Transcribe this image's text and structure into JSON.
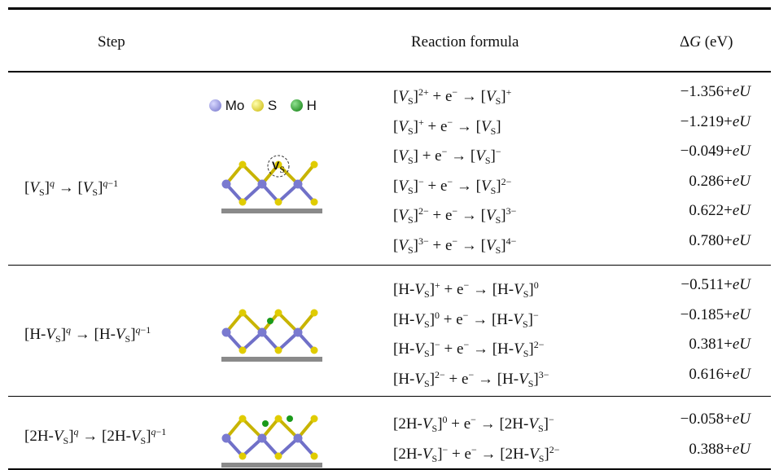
{
  "header": {
    "step": "Step",
    "formula": "Reaction formula",
    "dg": [
      "Δ",
      {
        "text": "G",
        "style": "i"
      },
      " (eV)"
    ]
  },
  "legend": {
    "mo": "Mo",
    "s": "S",
    "h": "H"
  },
  "vacancy_label": [
    {
      "text": "V",
      "style": "b"
    },
    {
      "text": "S",
      "style": "sub"
    }
  ],
  "groups": [
    {
      "step": [
        "[",
        {
          "text": "V",
          "style": "i"
        },
        {
          "text": "S",
          "style": "sub"
        },
        "]",
        {
          "text": "q",
          "style": "sup-i"
        },
        " → [",
        {
          "text": "V",
          "style": "i"
        },
        {
          "text": "S",
          "style": "sub"
        },
        "]",
        {
          "text": "q",
          "style": "sup-i"
        },
        {
          "text": "−1",
          "style": "sup"
        }
      ],
      "rows": [
        {
          "formula": [
            "[",
            {
              "text": "V",
              "style": "i"
            },
            {
              "text": "S",
              "style": "sub"
            },
            "]",
            {
              "text": "2+",
              "style": "sup"
            },
            " + e",
            {
              "text": "−",
              "style": "sup"
            },
            " → [",
            {
              "text": "V",
              "style": "i"
            },
            {
              "text": "S",
              "style": "sub"
            },
            "]",
            {
              "text": "+",
              "style": "sup"
            }
          ],
          "dg": [
            "−1.356+",
            {
              "text": "eU",
              "style": "i"
            }
          ]
        },
        {
          "formula": [
            "[",
            {
              "text": "V",
              "style": "i"
            },
            {
              "text": "S",
              "style": "sub"
            },
            "]",
            {
              "text": "+",
              "style": "sup"
            },
            " + e",
            {
              "text": "−",
              "style": "sup"
            },
            " → [",
            {
              "text": "V",
              "style": "i"
            },
            {
              "text": "S",
              "style": "sub"
            },
            "]"
          ],
          "dg": [
            "−1.219+",
            {
              "text": "eU",
              "style": "i"
            }
          ]
        },
        {
          "formula": [
            "[",
            {
              "text": "V",
              "style": "i"
            },
            {
              "text": "S",
              "style": "sub"
            },
            "] + e",
            {
              "text": "−",
              "style": "sup"
            },
            " → [",
            {
              "text": "V",
              "style": "i"
            },
            {
              "text": "S",
              "style": "sub"
            },
            "]",
            {
              "text": "−",
              "style": "sup"
            }
          ],
          "dg": [
            "−0.049+",
            {
              "text": "eU",
              "style": "i"
            }
          ]
        },
        {
          "formula": [
            "[",
            {
              "text": "V",
              "style": "i"
            },
            {
              "text": "S",
              "style": "sub"
            },
            "]",
            {
              "text": "−",
              "style": "sup"
            },
            " + e",
            {
              "text": "−",
              "style": "sup"
            },
            " → [",
            {
              "text": "V",
              "style": "i"
            },
            {
              "text": "S",
              "style": "sub"
            },
            "]",
            {
              "text": "2−",
              "style": "sup"
            }
          ],
          "dg": [
            "0.286+",
            {
              "text": "eU",
              "style": "i"
            }
          ]
        },
        {
          "formula": [
            "[",
            {
              "text": "V",
              "style": "i"
            },
            {
              "text": "S",
              "style": "sub"
            },
            "]",
            {
              "text": "2−",
              "style": "sup"
            },
            " + e",
            {
              "text": "−",
              "style": "sup"
            },
            " → [",
            {
              "text": "V",
              "style": "i"
            },
            {
              "text": "S",
              "style": "sub"
            },
            "]",
            {
              "text": "3−",
              "style": "sup"
            }
          ],
          "dg": [
            "0.622+",
            {
              "text": "eU",
              "style": "i"
            }
          ]
        },
        {
          "formula": [
            "[",
            {
              "text": "V",
              "style": "i"
            },
            {
              "text": "S",
              "style": "sub"
            },
            "]",
            {
              "text": "3−",
              "style": "sup"
            },
            " + e",
            {
              "text": "−",
              "style": "sup"
            },
            " → [",
            {
              "text": "V",
              "style": "i"
            },
            {
              "text": "S",
              "style": "sub"
            },
            "]",
            {
              "text": "4−",
              "style": "sup"
            }
          ],
          "dg": [
            "0.780+",
            {
              "text": "eU",
              "style": "i"
            }
          ]
        }
      ]
    },
    {
      "step": [
        "[H-",
        {
          "text": "V",
          "style": "i"
        },
        {
          "text": "S",
          "style": "sub"
        },
        "]",
        {
          "text": "q",
          "style": "sup-i"
        },
        " → [H-",
        {
          "text": "V",
          "style": "i"
        },
        {
          "text": "S",
          "style": "sub"
        },
        "]",
        {
          "text": "q",
          "style": "sup-i"
        },
        {
          "text": "−1",
          "style": "sup"
        }
      ],
      "rows": [
        {
          "formula": [
            "[H-",
            {
              "text": "V",
              "style": "i"
            },
            {
              "text": "S",
              "style": "sub"
            },
            "]",
            {
              "text": "+",
              "style": "sup"
            },
            " + e",
            {
              "text": "−",
              "style": "sup"
            },
            " → [H-",
            {
              "text": "V",
              "style": "i"
            },
            {
              "text": "S",
              "style": "sub"
            },
            "]",
            {
              "text": "0",
              "style": "sup"
            }
          ],
          "dg": [
            "−0.511+",
            {
              "text": "eU",
              "style": "i"
            }
          ]
        },
        {
          "formula": [
            "[H-",
            {
              "text": "V",
              "style": "i"
            },
            {
              "text": "S",
              "style": "sub"
            },
            "]",
            {
              "text": "0",
              "style": "sup"
            },
            " + e",
            {
              "text": "−",
              "style": "sup"
            },
            " → [H-",
            {
              "text": "V",
              "style": "i"
            },
            {
              "text": "S",
              "style": "sub"
            },
            "]",
            {
              "text": "−",
              "style": "sup"
            }
          ],
          "dg": [
            "−0.185+",
            {
              "text": "eU",
              "style": "i"
            }
          ]
        },
        {
          "formula": [
            "[H-",
            {
              "text": "V",
              "style": "i"
            },
            {
              "text": "S",
              "style": "sub"
            },
            "]",
            {
              "text": "−",
              "style": "sup"
            },
            " + e",
            {
              "text": "−",
              "style": "sup"
            },
            " → [H-",
            {
              "text": "V",
              "style": "i"
            },
            {
              "text": "S",
              "style": "sub"
            },
            "]",
            {
              "text": "2−",
              "style": "sup"
            }
          ],
          "dg": [
            "0.381+",
            {
              "text": "eU",
              "style": "i"
            }
          ]
        },
        {
          "formula": [
            "[H-",
            {
              "text": "V",
              "style": "i"
            },
            {
              "text": "S",
              "style": "sub"
            },
            "]",
            {
              "text": "2−",
              "style": "sup"
            },
            " + e",
            {
              "text": "−",
              "style": "sup"
            },
            " → [H-",
            {
              "text": "V",
              "style": "i"
            },
            {
              "text": "S",
              "style": "sub"
            },
            "]",
            {
              "text": "3−",
              "style": "sup"
            }
          ],
          "dg": [
            "0.616+",
            {
              "text": "eU",
              "style": "i"
            }
          ]
        }
      ]
    },
    {
      "step": [
        "[2H-",
        {
          "text": "V",
          "style": "i"
        },
        {
          "text": "S",
          "style": "sub"
        },
        "]",
        {
          "text": "q",
          "style": "sup-i"
        },
        " → [2H-",
        {
          "text": "V",
          "style": "i"
        },
        {
          "text": "S",
          "style": "sub"
        },
        "]",
        {
          "text": "q",
          "style": "sup-i"
        },
        {
          "text": "−1",
          "style": "sup"
        }
      ],
      "rows": [
        {
          "formula": [
            "[2H-",
            {
              "text": "V",
              "style": "i"
            },
            {
              "text": "S",
              "style": "sub"
            },
            "]",
            {
              "text": "0",
              "style": "sup"
            },
            " + e",
            {
              "text": "−",
              "style": "sup"
            },
            " → [2H-",
            {
              "text": "V",
              "style": "i"
            },
            {
              "text": "S",
              "style": "sub"
            },
            "]",
            {
              "text": "−",
              "style": "sup"
            }
          ],
          "dg": [
            "−0.058+",
            {
              "text": "eU",
              "style": "i"
            }
          ]
        },
        {
          "formula": [
            "[2H-",
            {
              "text": "V",
              "style": "i"
            },
            {
              "text": "S",
              "style": "sub"
            },
            "]",
            {
              "text": "−",
              "style": "sup"
            },
            " + e",
            {
              "text": "−",
              "style": "sup"
            },
            " → [2H-",
            {
              "text": "V",
              "style": "i"
            },
            {
              "text": "S",
              "style": "sub"
            },
            "]",
            {
              "text": "2−",
              "style": "sup"
            }
          ],
          "dg": [
            "0.388+",
            {
              "text": "eU",
              "style": "i"
            }
          ]
        }
      ]
    }
  ]
}
